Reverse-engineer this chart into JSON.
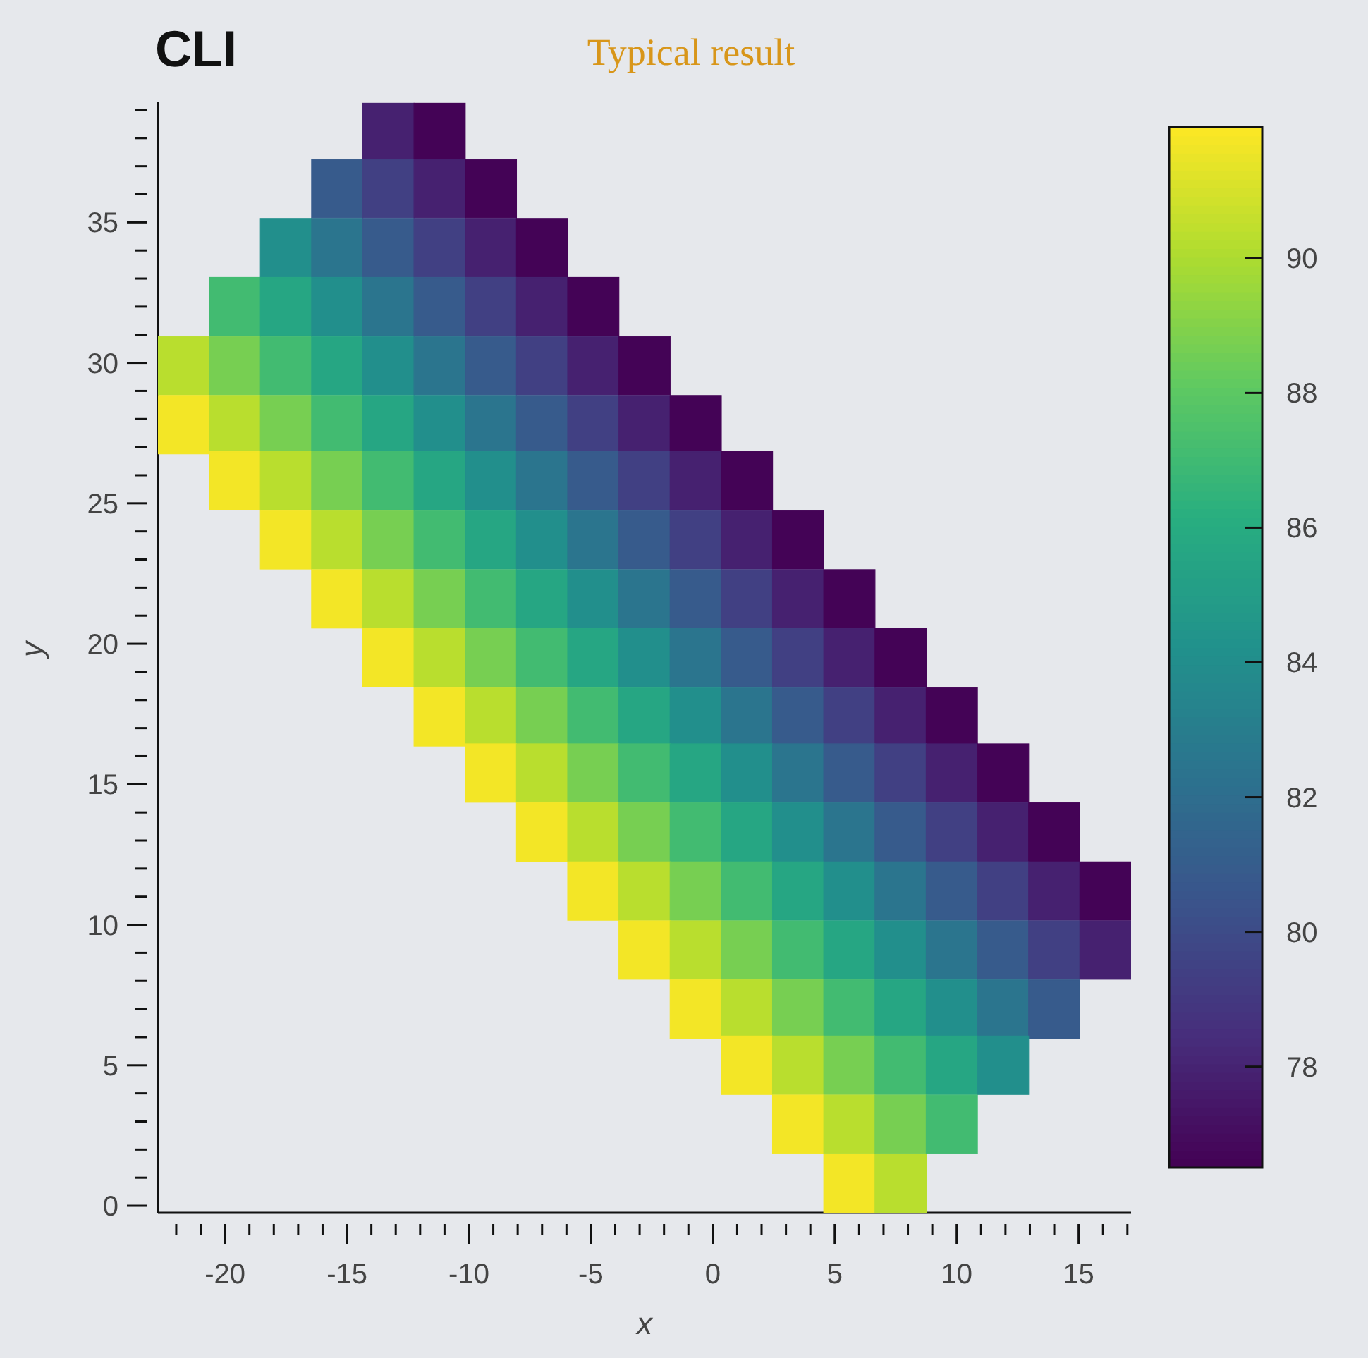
{
  "chart_data": {
    "type": "scatter",
    "title": "CLI",
    "subtitle": "Typical result",
    "xlabel": "x",
    "ylabel": "y",
    "marker": "square",
    "series": [
      {
        "x": [
          -13.3,
          -11.2
        ],
        "values": [
          38.2,
          38.2
        ],
        "cvalues": [
          77.9,
          76.6
        ],
        "colors": [
          "#462170",
          "#440356"
        ]
      },
      {
        "x": [
          -15.4,
          -13.3,
          -11.2,
          -9.1
        ],
        "values": [
          36.2,
          36.2,
          36.2,
          36.2
        ],
        "cvalues": [
          80.9,
          79.4,
          77.9,
          76.6
        ],
        "colors": [
          "#375b8c",
          "#414083",
          "#462170",
          "#440356"
        ]
      },
      {
        "x": [
          -17.5,
          -15.4,
          -13.3,
          -11.2,
          -9.1,
          -7.0
        ],
        "values": [
          34.1,
          34.1,
          34.1,
          34.1,
          34.1,
          34.1
        ],
        "cvalues": [
          84.1,
          82.5,
          80.9,
          79.4,
          77.9,
          76.6
        ],
        "colors": [
          "#228f8c",
          "#2b758e",
          "#375b8c",
          "#414083",
          "#462170",
          "#440356"
        ]
      },
      {
        "x": [
          -19.6,
          -17.5,
          -15.4,
          -13.3,
          -11.2,
          -9.1,
          -7.0,
          -4.9
        ],
        "values": [
          32.0,
          32.0,
          32.0,
          32.0,
          32.0,
          32.0,
          32.0,
          32.0
        ],
        "cvalues": [
          87.1,
          85.6,
          84.1,
          82.5,
          80.9,
          79.4,
          77.9,
          76.6
        ],
        "colors": [
          "#42bb71",
          "#26a683",
          "#228f8c",
          "#2b758e",
          "#375b8c",
          "#414083",
          "#462170",
          "#440356"
        ]
      },
      {
        "x": [
          -21.7,
          -19.6,
          -17.5,
          -15.4,
          -13.3,
          -11.2,
          -9.1,
          -7.0,
          -4.9,
          -2.8
        ],
        "values": [
          29.9,
          29.9,
          29.9,
          29.9,
          29.9,
          29.9,
          29.9,
          29.9,
          29.9,
          29.9
        ],
        "cvalues": [
          90.3,
          88.7,
          87.1,
          85.6,
          84.1,
          82.5,
          80.9,
          79.4,
          77.9,
          76.6
        ],
        "colors": [
          "#b9de2e",
          "#77cf52",
          "#42bb71",
          "#26a683",
          "#228f8c",
          "#2b758e",
          "#375b8c",
          "#414083",
          "#462170",
          "#440356"
        ]
      },
      {
        "x": [
          -21.7,
          -19.6,
          -17.5,
          -15.4,
          -13.3,
          -11.2,
          -9.1,
          -7.0,
          -4.9,
          -2.8,
          -0.7
        ],
        "values": [
          27.8,
          27.8,
          27.8,
          27.8,
          27.8,
          27.8,
          27.8,
          27.8,
          27.8,
          27.8,
          27.8
        ],
        "cvalues": [
          91.7,
          90.3,
          88.7,
          87.1,
          85.6,
          84.1,
          82.5,
          80.9,
          79.4,
          77.9,
          76.6
        ],
        "colors": [
          "#f3e626",
          "#b9de2e",
          "#77cf52",
          "#42bb71",
          "#26a683",
          "#228f8c",
          "#2b758e",
          "#375b8c",
          "#414083",
          "#462170",
          "#440356"
        ]
      },
      {
        "x": [
          -19.6,
          -17.5,
          -15.4,
          -13.3,
          -11.2,
          -9.1,
          -7.0,
          -4.9,
          -2.8,
          -0.7,
          1.4
        ],
        "values": [
          25.8,
          25.8,
          25.8,
          25.8,
          25.8,
          25.8,
          25.8,
          25.8,
          25.8,
          25.8,
          25.8
        ],
        "cvalues": [
          91.7,
          90.3,
          88.7,
          87.1,
          85.6,
          84.1,
          82.5,
          80.9,
          79.4,
          77.9,
          76.6
        ],
        "colors": [
          "#f3e626",
          "#b9de2e",
          "#77cf52",
          "#42bb71",
          "#26a683",
          "#228f8c",
          "#2b758e",
          "#375b8c",
          "#414083",
          "#462170",
          "#440356"
        ]
      },
      {
        "x": [
          -17.5,
          -15.4,
          -13.3,
          -11.2,
          -9.1,
          -7.0,
          -4.9,
          -2.8,
          -0.7,
          1.4,
          3.5
        ],
        "values": [
          23.7,
          23.7,
          23.7,
          23.7,
          23.7,
          23.7,
          23.7,
          23.7,
          23.7,
          23.7,
          23.7
        ],
        "cvalues": [
          91.7,
          90.3,
          88.7,
          87.1,
          85.6,
          84.1,
          82.5,
          80.9,
          79.4,
          77.9,
          76.6
        ],
        "colors": [
          "#f3e626",
          "#b9de2e",
          "#77cf52",
          "#42bb71",
          "#26a683",
          "#228f8c",
          "#2b758e",
          "#375b8c",
          "#414083",
          "#462170",
          "#440356"
        ]
      },
      {
        "x": [
          -15.4,
          -13.3,
          -11.2,
          -9.1,
          -7.0,
          -4.9,
          -2.8,
          -0.7,
          1.4,
          3.5,
          5.6
        ],
        "values": [
          21.6,
          21.6,
          21.6,
          21.6,
          21.6,
          21.6,
          21.6,
          21.6,
          21.6,
          21.6,
          21.6
        ],
        "cvalues": [
          91.7,
          90.3,
          88.7,
          87.1,
          85.6,
          84.1,
          82.5,
          80.9,
          79.4,
          77.9,
          76.6
        ],
        "colors": [
          "#f3e626",
          "#b9de2e",
          "#77cf52",
          "#42bb71",
          "#26a683",
          "#228f8c",
          "#2b758e",
          "#375b8c",
          "#414083",
          "#462170",
          "#440356"
        ]
      },
      {
        "x": [
          -13.3,
          -11.2,
          -9.1,
          -7.0,
          -4.9,
          -2.8,
          -0.7,
          1.4,
          3.5,
          5.6,
          7.7
        ],
        "values": [
          19.5,
          19.5,
          19.5,
          19.5,
          19.5,
          19.5,
          19.5,
          19.5,
          19.5,
          19.5,
          19.5
        ],
        "cvalues": [
          91.7,
          90.3,
          88.7,
          87.1,
          85.6,
          84.1,
          82.5,
          80.9,
          79.4,
          77.9,
          76.6
        ],
        "colors": [
          "#f3e626",
          "#b9de2e",
          "#77cf52",
          "#42bb71",
          "#26a683",
          "#228f8c",
          "#2b758e",
          "#375b8c",
          "#414083",
          "#462170",
          "#440356"
        ]
      },
      {
        "x": [
          -11.2,
          -9.1,
          -7.0,
          -4.9,
          -2.8,
          -0.7,
          1.4,
          3.5,
          5.6,
          7.7,
          9.8
        ],
        "values": [
          17.4,
          17.4,
          17.4,
          17.4,
          17.4,
          17.4,
          17.4,
          17.4,
          17.4,
          17.4,
          17.4
        ],
        "cvalues": [
          91.7,
          90.3,
          88.7,
          87.1,
          85.6,
          84.1,
          82.5,
          80.9,
          79.4,
          77.9,
          76.6
        ],
        "colors": [
          "#f3e626",
          "#b9de2e",
          "#77cf52",
          "#42bb71",
          "#26a683",
          "#228f8c",
          "#2b758e",
          "#375b8c",
          "#414083",
          "#462170",
          "#440356"
        ]
      },
      {
        "x": [
          -9.1,
          -7.0,
          -4.9,
          -2.8,
          -0.7,
          1.4,
          3.5,
          5.6,
          7.7,
          9.8,
          11.9
        ],
        "values": [
          15.4,
          15.4,
          15.4,
          15.4,
          15.4,
          15.4,
          15.4,
          15.4,
          15.4,
          15.4,
          15.4
        ],
        "cvalues": [
          91.7,
          90.3,
          88.7,
          87.1,
          85.6,
          84.1,
          82.5,
          80.9,
          79.4,
          77.9,
          76.6
        ],
        "colors": [
          "#f3e626",
          "#b9de2e",
          "#77cf52",
          "#42bb71",
          "#26a683",
          "#228f8c",
          "#2b758e",
          "#375b8c",
          "#414083",
          "#462170",
          "#440356"
        ]
      },
      {
        "x": [
          -7.0,
          -4.9,
          -2.8,
          -0.7,
          1.4,
          3.5,
          5.6,
          7.7,
          9.8,
          11.9,
          14.0
        ],
        "values": [
          13.3,
          13.3,
          13.3,
          13.3,
          13.3,
          13.3,
          13.3,
          13.3,
          13.3,
          13.3,
          13.3
        ],
        "cvalues": [
          91.7,
          90.3,
          88.7,
          87.1,
          85.6,
          84.1,
          82.5,
          80.9,
          79.4,
          77.9,
          76.6
        ],
        "colors": [
          "#f3e626",
          "#b9de2e",
          "#77cf52",
          "#42bb71",
          "#26a683",
          "#228f8c",
          "#2b758e",
          "#375b8c",
          "#414083",
          "#462170",
          "#440356"
        ]
      },
      {
        "x": [
          -4.9,
          -2.8,
          -0.7,
          1.4,
          3.5,
          5.6,
          7.7,
          9.8,
          11.9,
          14.0,
          16.1
        ],
        "values": [
          11.2,
          11.2,
          11.2,
          11.2,
          11.2,
          11.2,
          11.2,
          11.2,
          11.2,
          11.2,
          11.2
        ],
        "cvalues": [
          91.7,
          90.3,
          88.7,
          87.1,
          85.6,
          84.1,
          82.5,
          80.9,
          79.4,
          77.9,
          76.6
        ],
        "colors": [
          "#f3e626",
          "#b9de2e",
          "#77cf52",
          "#42bb71",
          "#26a683",
          "#228f8c",
          "#2b758e",
          "#375b8c",
          "#414083",
          "#462170",
          "#440356"
        ]
      },
      {
        "x": [
          -2.8,
          -0.7,
          1.4,
          3.5,
          5.6,
          7.7,
          9.8,
          11.9,
          14.0,
          16.1
        ],
        "values": [
          9.1,
          9.1,
          9.1,
          9.1,
          9.1,
          9.1,
          9.1,
          9.1,
          9.1,
          9.1
        ],
        "cvalues": [
          91.7,
          90.3,
          88.7,
          87.1,
          85.6,
          84.1,
          82.5,
          80.9,
          79.4,
          77.9
        ],
        "colors": [
          "#f3e626",
          "#b9de2e",
          "#77cf52",
          "#42bb71",
          "#26a683",
          "#228f8c",
          "#2b758e",
          "#375b8c",
          "#414083",
          "#462170"
        ]
      },
      {
        "x": [
          -0.7,
          1.4,
          3.5,
          5.6,
          7.7,
          9.8,
          11.9,
          14.0
        ],
        "values": [
          7.0,
          7.0,
          7.0,
          7.0,
          7.0,
          7.0,
          7.0,
          7.0
        ],
        "cvalues": [
          91.7,
          90.3,
          88.7,
          87.1,
          85.6,
          84.1,
          82.5,
          80.9
        ],
        "colors": [
          "#f3e626",
          "#b9de2e",
          "#77cf52",
          "#42bb71",
          "#26a683",
          "#228f8c",
          "#2b758e",
          "#375b8c"
        ]
      },
      {
        "x": [
          1.4,
          3.5,
          5.6,
          7.7,
          9.8,
          11.9
        ],
        "values": [
          5.0,
          5.0,
          5.0,
          5.0,
          5.0,
          5.0
        ],
        "cvalues": [
          91.7,
          90.3,
          88.7,
          87.1,
          85.6,
          84.1
        ],
        "colors": [
          "#f3e626",
          "#b9de2e",
          "#77cf52",
          "#42bb71",
          "#26a683",
          "#228f8c"
        ]
      },
      {
        "x": [
          3.5,
          5.6,
          7.7,
          9.8
        ],
        "values": [
          2.9,
          2.9,
          2.9,
          2.9
        ],
        "cvalues": [
          91.7,
          90.3,
          88.7,
          87.1
        ],
        "colors": [
          "#f3e626",
          "#b9de2e",
          "#77cf52",
          "#42bb71"
        ]
      },
      {
        "x": [
          5.6,
          7.7
        ],
        "values": [
          0.8,
          0.8
        ],
        "cvalues": [
          91.7,
          90.3
        ],
        "colors": [
          "#f3e626",
          "#b9de2e"
        ]
      }
    ],
    "clim": [
      76.5,
      91.95
    ],
    "cticks": [
      78,
      80,
      82,
      84,
      86,
      88,
      90
    ],
    "xlim": [
      -22.75,
      17.15
    ],
    "xticks": [
      {
        "value": -22,
        "label": null
      },
      {
        "value": -21,
        "label": null
      },
      -20,
      {
        "value": -19,
        "label": null
      },
      {
        "value": -18,
        "label": null
      },
      {
        "value": -17,
        "label": null
      },
      {
        "value": -16,
        "label": null
      },
      -15,
      {
        "value": -14,
        "label": null
      },
      {
        "value": -13,
        "label": null
      },
      {
        "value": -12,
        "label": null
      },
      {
        "value": -11,
        "label": null
      },
      -10,
      {
        "value": -9,
        "label": null
      },
      {
        "value": -8,
        "label": null
      },
      {
        "value": -7,
        "label": null
      },
      {
        "value": -6,
        "label": null
      },
      -5,
      {
        "value": -4,
        "label": null
      },
      {
        "value": -3,
        "label": null
      },
      {
        "value": -2,
        "label": null
      },
      {
        "value": -1,
        "label": null
      },
      0,
      {
        "value": 1,
        "label": null
      },
      {
        "value": 2,
        "label": null
      },
      {
        "value": 3,
        "label": null
      },
      {
        "value": 4,
        "label": null
      },
      5,
      {
        "value": 6,
        "label": null
      },
      {
        "value": 7,
        "label": null
      },
      {
        "value": 8,
        "label": null
      },
      {
        "value": 9,
        "label": null
      },
      10,
      {
        "value": 11,
        "label": null
      },
      {
        "value": 12,
        "label": null
      },
      {
        "value": 13,
        "label": null
      },
      {
        "value": 14,
        "label": null
      },
      15,
      {
        "value": 16,
        "label": null
      },
      {
        "value": 17,
        "label": null
      }
    ],
    "ylim": [
      -0.25,
      39.3
    ],
    "yticks": [
      0,
      {
        "value": 1,
        "label": null
      },
      {
        "value": 2,
        "label": null
      },
      {
        "value": 3,
        "label": null
      },
      {
        "value": 4,
        "label": null
      },
      5,
      {
        "value": 6,
        "label": null
      },
      {
        "value": 7,
        "label": null
      },
      {
        "value": 8,
        "label": null
      },
      {
        "value": 9,
        "label": null
      },
      10,
      {
        "value": 11,
        "label": null
      },
      {
        "value": 12,
        "label": null
      },
      {
        "value": 13,
        "label": null
      },
      {
        "value": 14,
        "label": null
      },
      15,
      {
        "value": 16,
        "label": null
      },
      {
        "value": 17,
        "label": null
      },
      {
        "value": 18,
        "label": null
      },
      {
        "value": 19,
        "label": null
      },
      20,
      {
        "value": 21,
        "label": null
      },
      {
        "value": 22,
        "label": null
      },
      {
        "value": 23,
        "label": null
      },
      {
        "value": 24,
        "label": null
      },
      25,
      {
        "value": 26,
        "label": null
      },
      {
        "value": 27,
        "label": null
      },
      {
        "value": 28,
        "label": null
      },
      {
        "value": 29,
        "label": null
      },
      30,
      {
        "value": 31,
        "label": null
      },
      {
        "value": 32,
        "label": null
      },
      {
        "value": 33,
        "label": null
      },
      {
        "value": 34,
        "label": null
      },
      35,
      {
        "value": 36,
        "label": null
      },
      {
        "value": 37,
        "label": null
      },
      {
        "value": 38,
        "label": null
      },
      {
        "value": 39,
        "label": null
      }
    ]
  }
}
